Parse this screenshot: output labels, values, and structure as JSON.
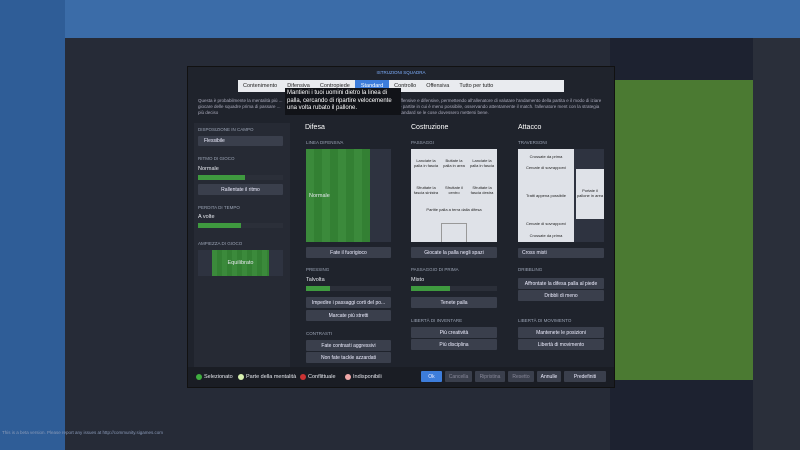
{
  "header": {
    "title": "ISTRUZIONI SQUADRA",
    "tabs": [
      "Contenimento",
      "Difensiva",
      "Contropiede",
      "Standard",
      "Controllo",
      "Offensiva",
      "Tutto per tutto"
    ],
    "tooltip": "Mantieni i tuoi uomini dietro la linea di palla, cercando di ripartire velocemente una volta rubato il pallone.",
    "description_left": "Questa è probabilmente la mentalità più ... giocare delle squadre prima di passare ... più deciso",
    "description_right": "offensive e difensive, permettendo all'allenatore di valutare l'andamento della partita e il modo di iziare le partite in cui è meno possibile, osservando attentamente il match. l'allenatore ment con la strategia standard se le cose dovessero mettersi bene."
  },
  "left_panel": {
    "formation_label": "DISPOSIZIONE IN CAMPO",
    "formation_value": "Flessibile",
    "tempo_label": "RITMO DI GIOCO",
    "tempo_value": "Normale",
    "tempo_button": "Rallentate il ritmo",
    "time_wasting_label": "PERDITA DI TEMPO",
    "time_wasting_value": "A volte",
    "width_label": "AMPIEZZA DI GIOCO",
    "width_value": "Equilibrato"
  },
  "defense": {
    "title": "Difesa",
    "line_label": "LINEA DIFENSIVA",
    "line_value": "Normale",
    "offside_button": "Fate il fuorigioco",
    "pressing_label": "PRESSING",
    "pressing_value": "Talvolta",
    "pressing_buttons": [
      "Impedire i passaggi corti del po...",
      "Marcate più stretti"
    ],
    "tackling_label": "CONTRASTI",
    "tackling_buttons": [
      "Fate contrasti aggressivi",
      "Non fate tackle azzardati"
    ]
  },
  "buildup": {
    "title": "Costruzione",
    "passing_label": "PASSAGGI",
    "grid": [
      "Lanciate la palla in fascia",
      "Buttate la palla in area",
      "Lanciate la palla in fascia",
      "Sfruttate la fascia sinistra",
      "Sfruttate il centro",
      "Sfruttate la fascia destra",
      "Partite palla a terra dalla difesa"
    ],
    "space_button": "Giocate la palla negli spazi",
    "first_time_label": "PASSAGGIO DI PRIMA",
    "first_time_value": "Misto",
    "keep_button": "Tenete palla",
    "creative_label": "LIBERTÀ DI INVENTARE",
    "creative_buttons": [
      "Più creatività",
      "Più disciplina"
    ]
  },
  "attack": {
    "title": "Attacco",
    "crossing_label": "TRAVERSONI",
    "grid": [
      "Crossate da prima",
      "Cercate di sovrapporvi",
      "Tratti appena possibile",
      "Portate il pallone in area",
      "Cercate di sovrapporvi",
      "Crossate da prima"
    ],
    "cross_value": "Cross misti",
    "dribbling_label": "DRIBBLING",
    "dribbling_buttons": [
      "Affrontate la difesa palla al piede",
      "Dribbli di meno"
    ],
    "movement_label": "LIBERTÀ DI MOVIMENTO",
    "movement_buttons": [
      "Mantenete le posizioni",
      "Libertà di movimento"
    ]
  },
  "footer": {
    "legend": [
      "Selezionato",
      "Parte della mentalità",
      "Conflittuale",
      "Indisponibili"
    ],
    "buttons": [
      "Ok",
      "Cancella",
      "Ripristina",
      "Resetto",
      "Annulle",
      "Predefiniti"
    ]
  },
  "beta_notice": "This is a beta version. Please report any issues at http://community.sigames.com"
}
